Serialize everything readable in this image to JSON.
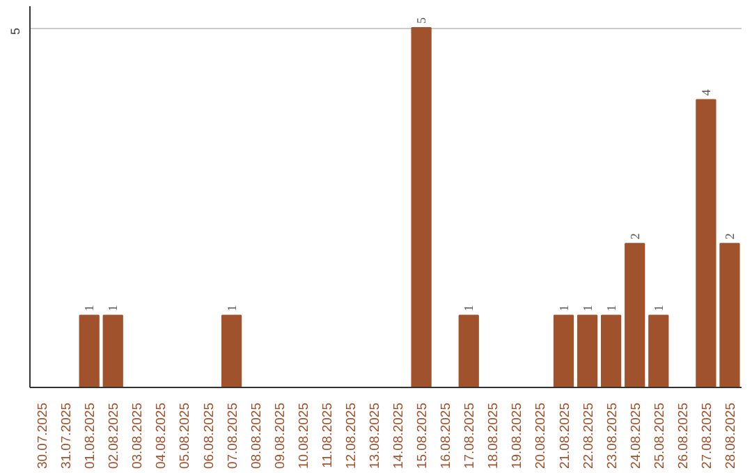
{
  "chart_data": {
    "type": "bar",
    "categories": [
      "30.07.2025",
      "31.07.2025",
      "01.08.2025",
      "02.08.2025",
      "03.08.2025",
      "04.08.2025",
      "05.08.2025",
      "06.08.2025",
      "07.08.2025",
      "08.08.2025",
      "09.08.2025",
      "10.08.2025",
      "11.08.2025",
      "12.08.2025",
      "13.08.2025",
      "14.08.2025",
      "15.08.2025",
      "16.08.2025",
      "17.08.2025",
      "18.08.2025",
      "19.08.2025",
      "20.08.2025",
      "21.08.2025",
      "22.08.2025",
      "23.08.2025",
      "24.08.2025",
      "25.08.2025",
      "26.08.2025",
      "27.08.2025",
      "28.08.2025"
    ],
    "values": [
      0,
      0,
      1,
      1,
      0,
      0,
      0,
      0,
      1,
      0,
      0,
      0,
      0,
      0,
      0,
      0,
      5,
      0,
      1,
      0,
      0,
      0,
      1,
      1,
      1,
      2,
      1,
      0,
      4,
      2
    ],
    "color": "#a0522d",
    "value_labels": [
      null,
      null,
      "1",
      "1",
      null,
      null,
      null,
      null,
      "1",
      null,
      null,
      null,
      null,
      null,
      null,
      null,
      "5",
      null,
      "1",
      null,
      null,
      null,
      "1",
      "1",
      "1",
      "2",
      "1",
      null,
      "4",
      "2"
    ],
    "ylim": [
      0,
      5.3
    ],
    "yticks": [
      5
    ],
    "grid": "y"
  }
}
